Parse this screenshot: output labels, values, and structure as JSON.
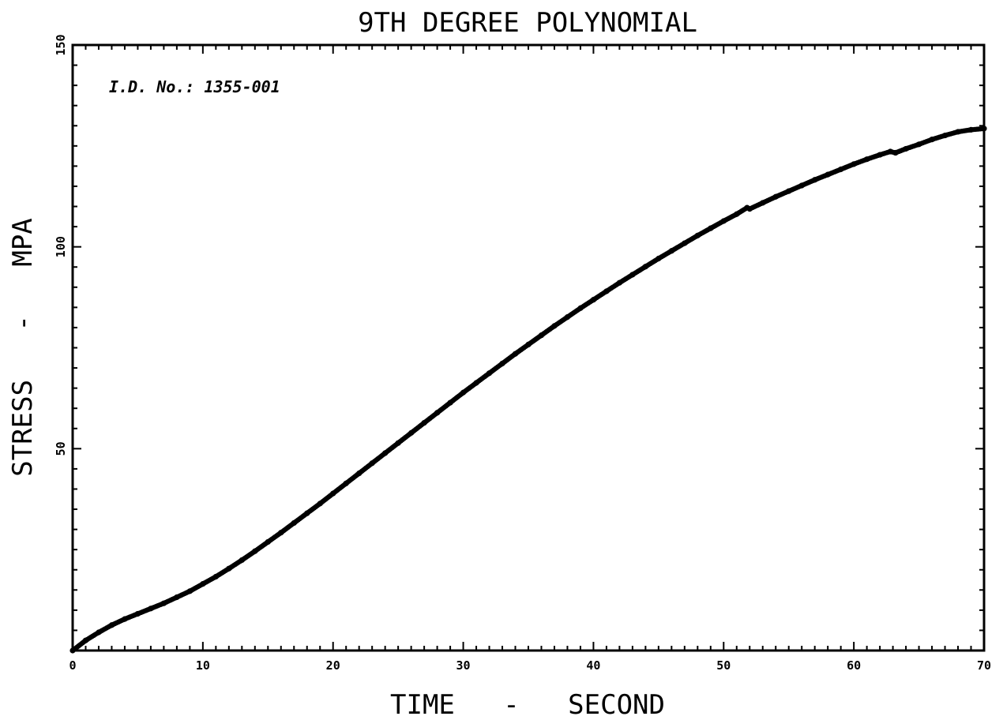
{
  "chart_data": {
    "type": "scatter",
    "title": "9TH DEGREE POLYNOMIAL",
    "xlabel": "TIME   -   SECOND",
    "ylabel": "STRESS   -   MPA",
    "annotation": "I.D. No.: 1355-001",
    "xlim": [
      0,
      70
    ],
    "ylim": [
      0,
      150
    ],
    "x_ticks": [
      0,
      10,
      20,
      30,
      40,
      50,
      60,
      70
    ],
    "y_ticks": [
      50,
      100,
      150
    ],
    "x_tick_labels": [
      "0",
      "10",
      "20",
      "30",
      "40",
      "50",
      "60",
      "70"
    ],
    "y_tick_labels": [
      "50",
      "100",
      "150"
    ],
    "grid": false,
    "series": [
      {
        "color": "#000000",
        "x": [
          0,
          1,
          2,
          3,
          4,
          5,
          6,
          7,
          8,
          9,
          10,
          11,
          12,
          13,
          14,
          15,
          16,
          17,
          18,
          19,
          20,
          21,
          22,
          23,
          24,
          25,
          26,
          27,
          28,
          29,
          30,
          31,
          32,
          33,
          34,
          35,
          36,
          37,
          38,
          39,
          40,
          41,
          42,
          43,
          44,
          45,
          46,
          47,
          48,
          49,
          50,
          51,
          51.8,
          52,
          53,
          54,
          55,
          56,
          57,
          58,
          59,
          60,
          61,
          62,
          62.8,
          63.2,
          64,
          65,
          66,
          67,
          68,
          69,
          70
        ],
        "y": [
          0,
          2.5,
          4.5,
          6.3,
          7.8,
          9.1,
          10.4,
          11.7,
          13.2,
          14.7,
          16.5,
          18.3,
          20.3,
          22.4,
          24.6,
          26.9,
          29.2,
          31.6,
          34.0,
          36.4,
          38.9,
          41.4,
          43.9,
          46.4,
          48.9,
          51.4,
          53.9,
          56.4,
          58.9,
          61.4,
          63.9,
          66.3,
          68.7,
          71.1,
          73.5,
          75.8,
          78.1,
          80.4,
          82.6,
          84.8,
          86.9,
          89.0,
          91.1,
          93.1,
          95.1,
          97.1,
          99.0,
          100.9,
          102.8,
          104.6,
          106.4,
          108.1,
          109.7,
          109.4,
          110.9,
          112.4,
          113.8,
          115.2,
          116.6,
          117.9,
          119.2,
          120.5,
          121.7,
          122.8,
          123.6,
          123.3,
          124.3,
          125.4,
          126.6,
          127.6,
          128.5,
          129.0,
          129.3
        ]
      }
    ]
  }
}
